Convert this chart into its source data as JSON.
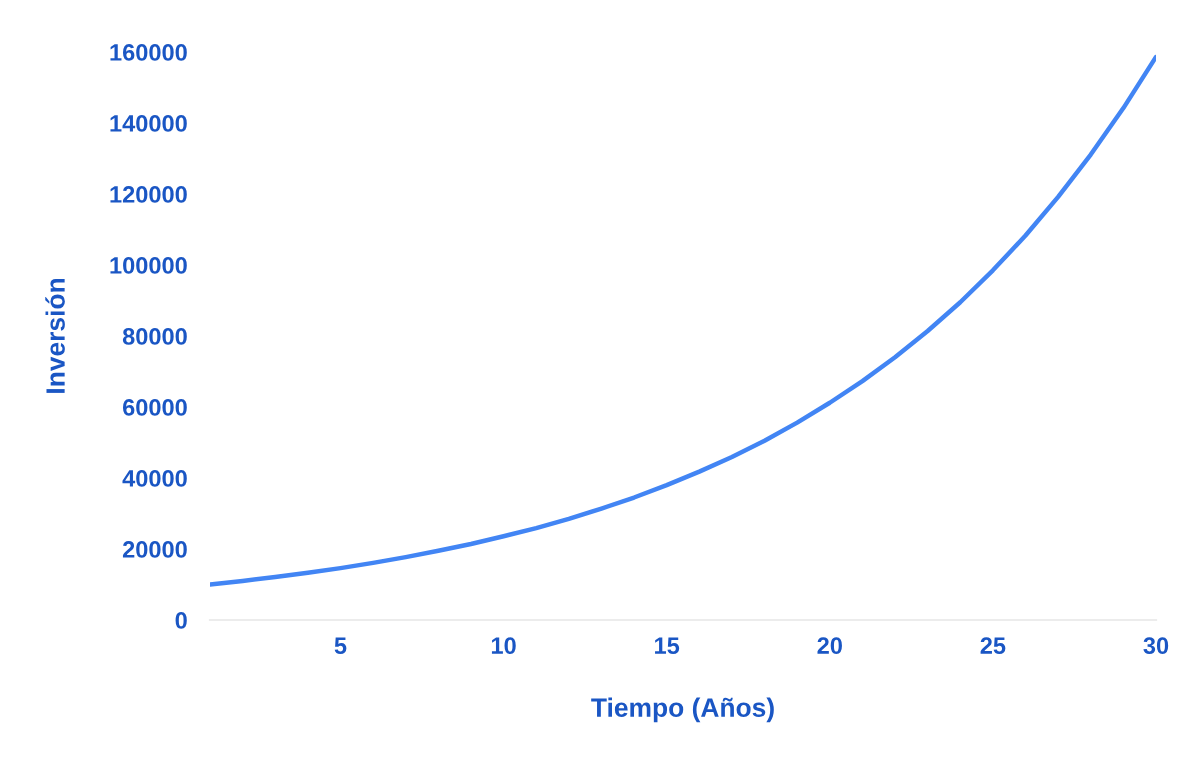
{
  "chart_data": {
    "type": "line",
    "xlabel": "Tiempo (Años)",
    "ylabel": "Inversión",
    "x": [
      1,
      2,
      3,
      4,
      5,
      6,
      7,
      8,
      9,
      10,
      11,
      12,
      13,
      14,
      15,
      16,
      17,
      18,
      19,
      20,
      21,
      22,
      23,
      24,
      25,
      26,
      27,
      28,
      29,
      30
    ],
    "series": [
      {
        "color": "#4285f4",
        "values": [
          10000,
          11000,
          12100,
          13300,
          14600,
          16100,
          17700,
          19500,
          21400,
          23600,
          25900,
          28500,
          31400,
          34500,
          38000,
          41800,
          45900,
          50500,
          55600,
          61200,
          67300,
          74000,
          81400,
          89500,
          98500,
          108300,
          119200,
          131100,
          144200,
          158600
        ]
      }
    ],
    "xlim": [
      1,
      30
    ],
    "xticks": [
      5,
      10,
      15,
      20,
      25,
      30
    ],
    "ylim": [
      0,
      160000
    ],
    "yticks": [
      0,
      20000,
      40000,
      60000,
      80000,
      100000,
      120000,
      140000,
      160000
    ],
    "grid": false,
    "legend": false,
    "marker": "none",
    "line_style": "solid"
  }
}
